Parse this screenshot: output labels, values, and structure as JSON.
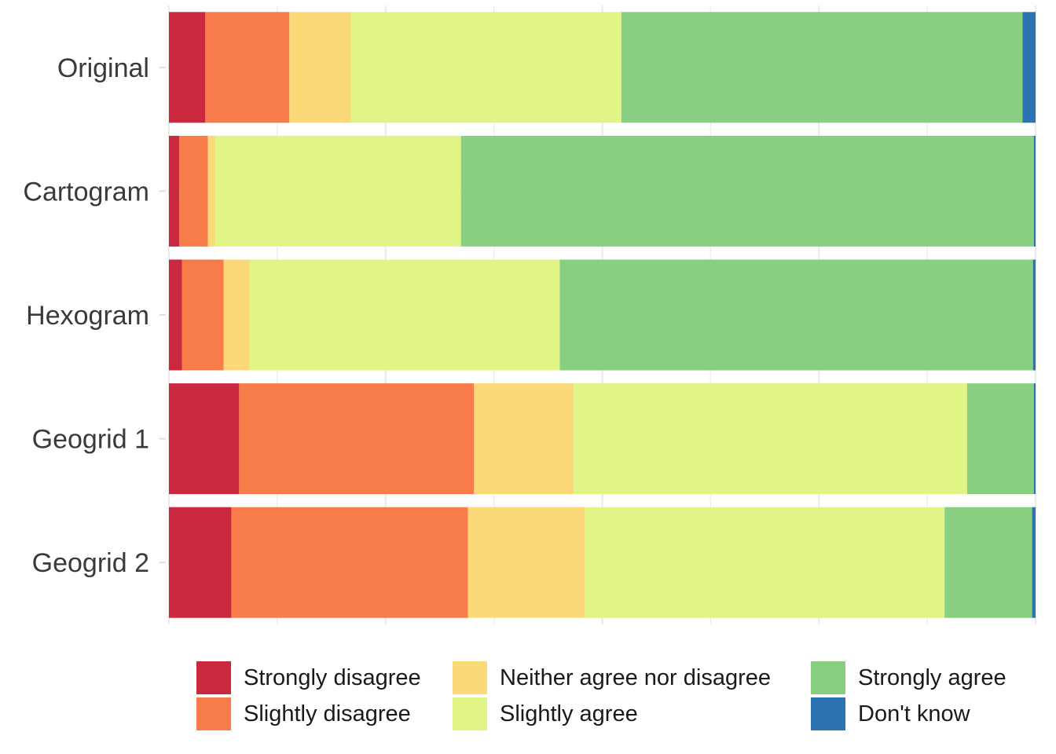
{
  "chart_data": {
    "type": "bar",
    "orientation": "horizontal",
    "stacked": "percent",
    "categories": [
      "Original",
      "Cartogram",
      "Hexogram",
      "Geogrid 1",
      "Geogrid 2"
    ],
    "xlim": [
      0,
      100
    ],
    "grid": true,
    "legend_position": "bottom",
    "series": [
      {
        "name": "Strongly disagree",
        "color": "#ca283f",
        "values": [
          4.2,
          1.2,
          1.5,
          8.1,
          7.2
        ]
      },
      {
        "name": "Slightly disagree",
        "color": "#f87b4a",
        "values": [
          9.7,
          3.3,
          4.8,
          27.1,
          27.3
        ]
      },
      {
        "name": "Neither agree nor disagree",
        "color": "#fbd878",
        "values": [
          7.1,
          0.8,
          3.0,
          11.5,
          13.5
        ]
      },
      {
        "name": "Slightly agree",
        "color": "#e1f486",
        "values": [
          31.2,
          28.4,
          35.8,
          45.4,
          41.5
        ]
      },
      {
        "name": "Strongly agree",
        "color": "#89cf82",
        "values": [
          46.3,
          66.1,
          54.6,
          7.7,
          10.1
        ]
      },
      {
        "name": "Don't know",
        "color": "#2b74b1",
        "values": [
          1.5,
          0.2,
          0.3,
          0.2,
          0.4
        ]
      }
    ]
  }
}
